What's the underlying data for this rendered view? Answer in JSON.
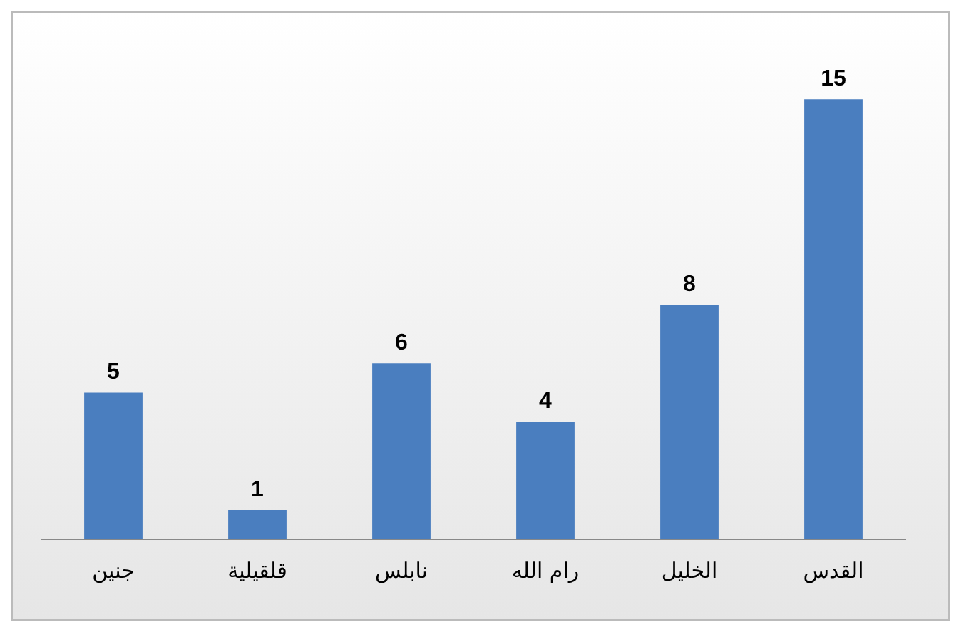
{
  "chart_data": {
    "type": "bar",
    "categories": [
      "جنين",
      "قلقيلية",
      "نابلس",
      "رام الله",
      "الخليل",
      "القدس"
    ],
    "values": [
      5,
      1,
      6,
      4,
      8,
      15
    ],
    "color": "#4a7ebf",
    "data_labels": true
  }
}
